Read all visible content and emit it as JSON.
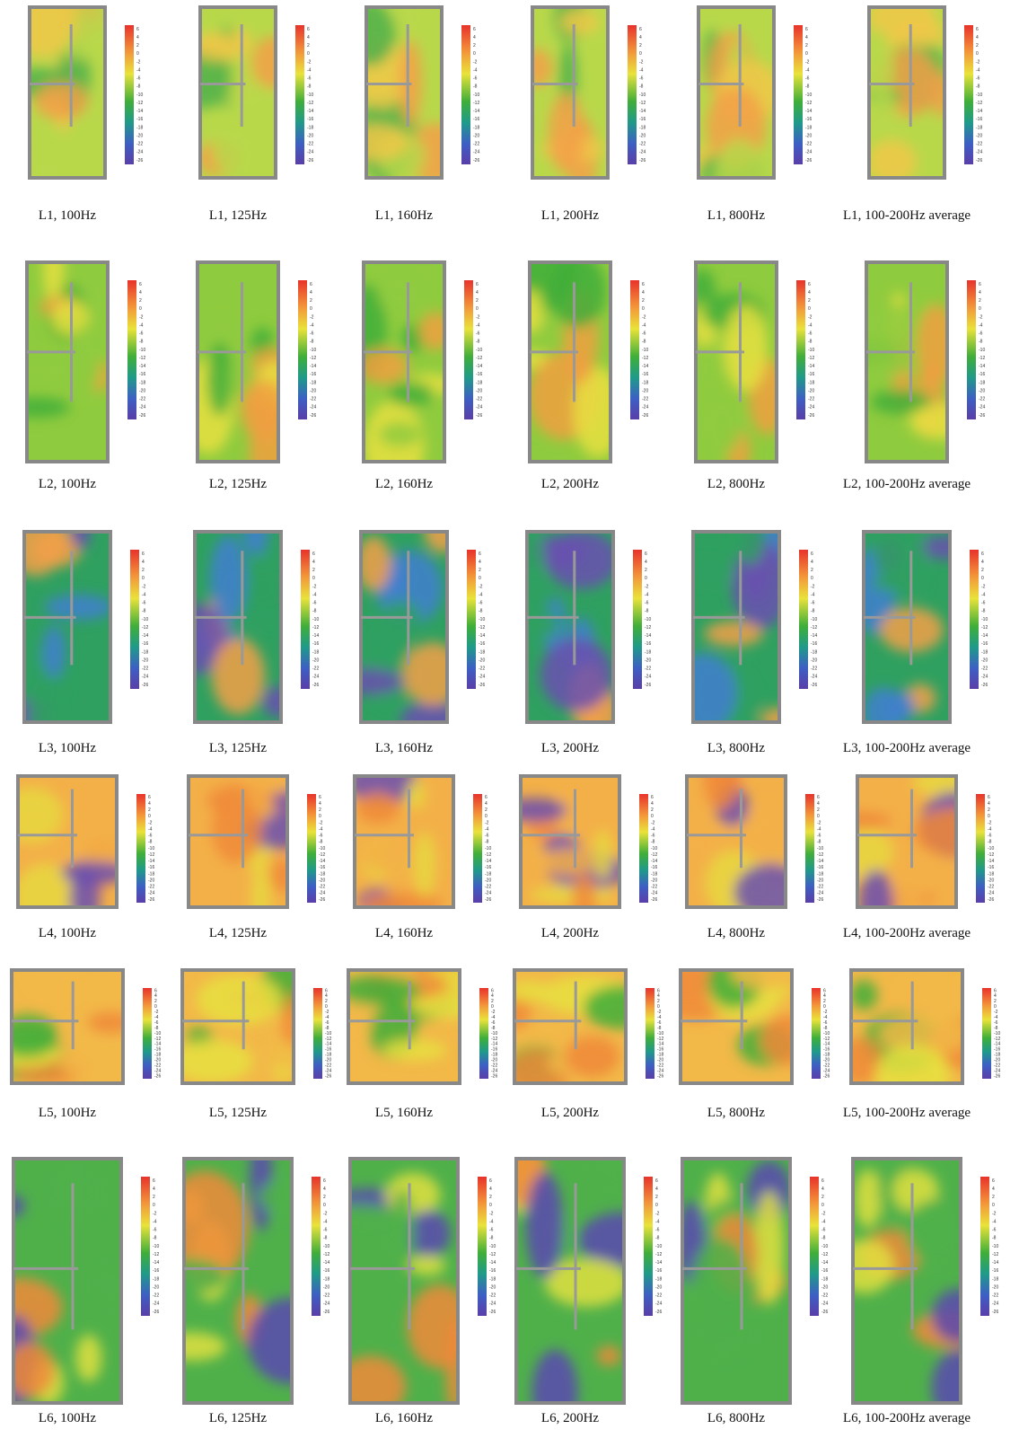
{
  "figure": {
    "colorbar_ticks": [
      6,
      4,
      2,
      0,
      -2,
      -4,
      -6,
      -8,
      -10,
      -12,
      -14,
      -16,
      -18,
      -20,
      -22,
      -24,
      -26
    ],
    "rows": [
      [
        "L1, 100Hz",
        "L1, 125Hz",
        "L1, 160Hz",
        "L1, 200Hz",
        "L1, 800Hz",
        "L1, 100-200Hz average"
      ],
      [
        "L2, 100Hz",
        "L2, 125Hz",
        "L2, 160Hz",
        "L2, 200Hz",
        "L2, 800Hz",
        "L2, 100-200Hz average"
      ],
      [
        "L3, 100Hz",
        "L3, 125Hz",
        "L3, 160Hz",
        "L3, 200Hz",
        "L3, 800Hz",
        "L3, 100-200Hz average"
      ],
      [
        "L4, 100Hz",
        "L4, 125Hz",
        "L4, 160Hz",
        "L4, 200Hz",
        "L4, 800Hz",
        "L4, 100-200Hz average"
      ],
      [
        "L5, 100Hz",
        "L5, 125Hz",
        "L5, 160Hz",
        "L5, 200Hz",
        "L5, 800Hz",
        "L5, 100-200Hz average"
      ],
      [
        "L6, 100Hz",
        "L6, 125Hz",
        "L6, 160Hz",
        "L6, 200Hz",
        "L6, 800Hz",
        "L6, 100-200Hz average"
      ]
    ]
  }
}
